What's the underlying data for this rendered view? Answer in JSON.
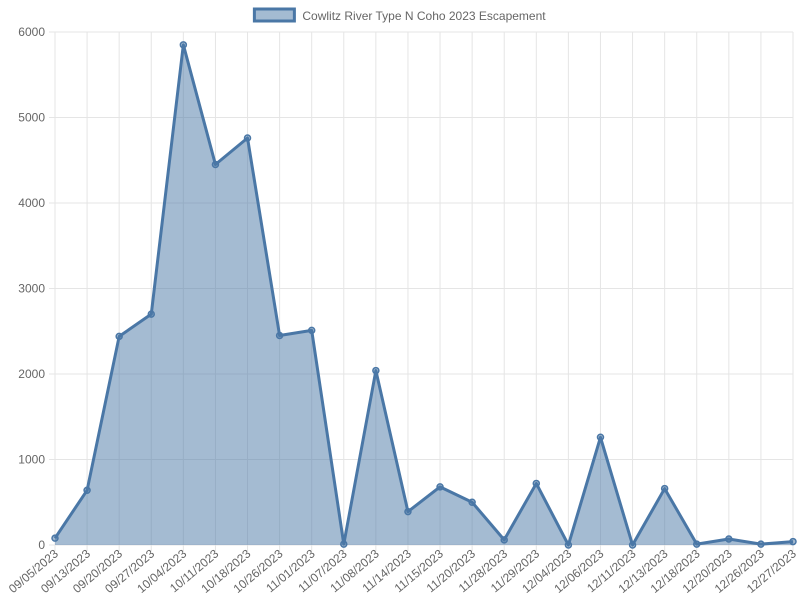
{
  "chart_data": {
    "type": "line",
    "categories": [
      "09/05/2023",
      "09/13/2023",
      "09/20/2023",
      "09/27/2023",
      "10/04/2023",
      "10/11/2023",
      "10/18/2023",
      "10/26/2023",
      "11/01/2023",
      "11/07/2023",
      "11/08/2023",
      "11/14/2023",
      "11/15/2023",
      "11/20/2023",
      "11/28/2023",
      "11/29/2023",
      "12/04/2023",
      "12/06/2023",
      "12/11/2023",
      "12/13/2023",
      "12/18/2023",
      "12/20/2023",
      "12/26/2023",
      "12/27/2023"
    ],
    "series": [
      {
        "name": "Cowlitz River Type N Coho 2023 Escapement",
        "color": "#4a77a6",
        "values": [
          80,
          640,
          2440,
          2700,
          5850,
          4450,
          4760,
          2450,
          2510,
          10,
          2040,
          390,
          680,
          500,
          60,
          720,
          0,
          1260,
          0,
          660,
          10,
          70,
          10,
          40
        ]
      }
    ],
    "ylim": [
      0,
      6000
    ],
    "yticks": [
      0,
      1000,
      2000,
      3000,
      4000,
      5000,
      6000
    ],
    "grid": true,
    "fill": true,
    "legend": "top"
  }
}
